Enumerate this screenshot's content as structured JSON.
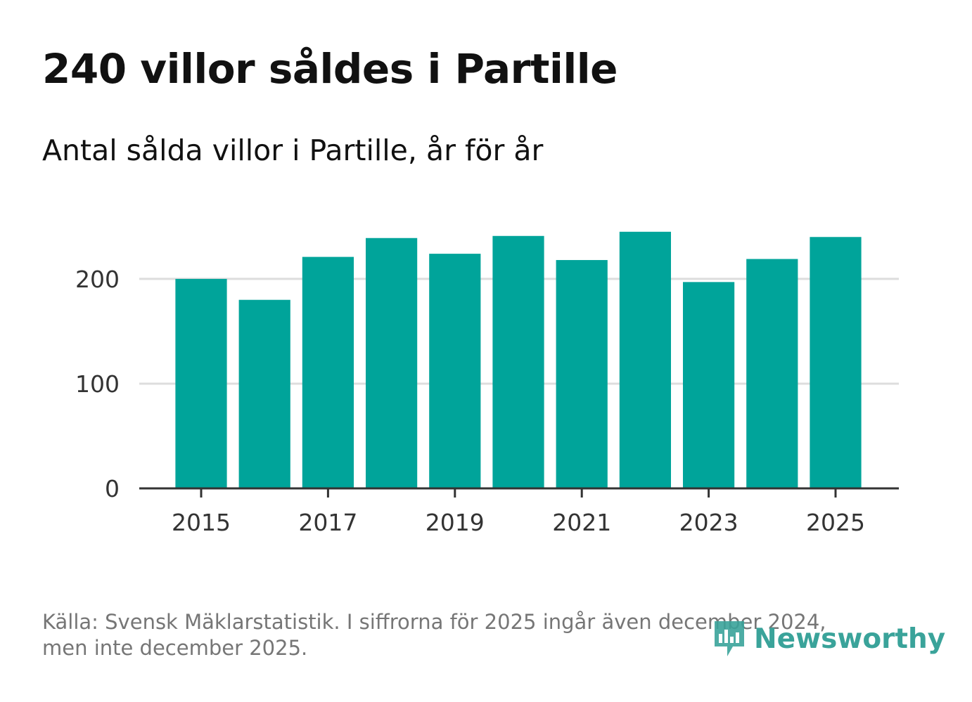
{
  "title": "240 villor såldes i Partille",
  "subtitle": "Antal sålda villor i Partille, år för år",
  "source": {
    "line1": "Källa: Svensk Mäklarstatistik. I siffrorna för 2025 ingår även december 2024,",
    "line2": "men inte december 2025."
  },
  "logo": {
    "text": "Newsworthy",
    "icon": "newsworthy-chart-icon"
  },
  "colors": {
    "bar": "#00a49a",
    "grid": "#dddddd",
    "axis": "#333333",
    "logo": "#3aa39a"
  },
  "chart_data": {
    "type": "bar",
    "title": "240 villor såldes i Partille",
    "subtitle": "Antal sålda villor i Partille, år för år",
    "xlabel": "",
    "ylabel": "",
    "categories": [
      "2015",
      "2016",
      "2017",
      "2018",
      "2019",
      "2020",
      "2021",
      "2022",
      "2023",
      "2024",
      "2025"
    ],
    "values": [
      200,
      180,
      221,
      239,
      224,
      241,
      218,
      245,
      197,
      219,
      240
    ],
    "x_ticks": [
      "2015",
      "2017",
      "2019",
      "2021",
      "2023",
      "2025"
    ],
    "y_ticks": [
      0,
      100,
      200
    ],
    "ylim": [
      0,
      265
    ],
    "grid": true,
    "legend": "none"
  }
}
